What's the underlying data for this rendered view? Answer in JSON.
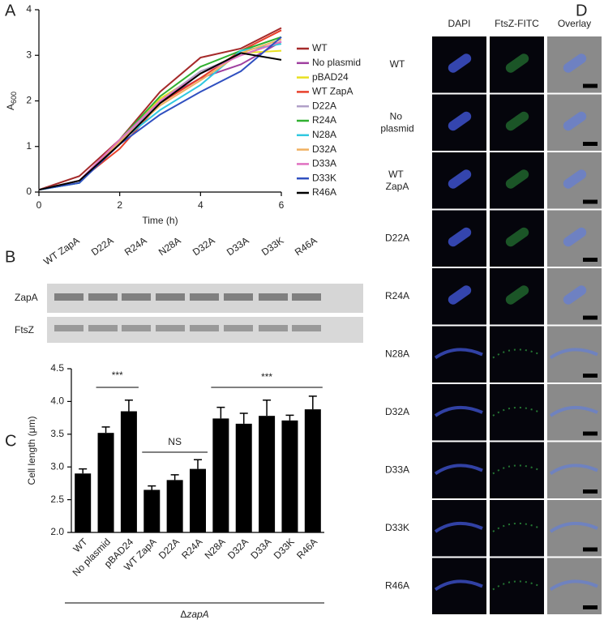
{
  "chart_data": [
    {
      "type": "line",
      "panel_label": "A",
      "xlabel": "Time (h)",
      "ylabel": "A",
      "ylabel_subscript": "600",
      "x": [
        0,
        1,
        2,
        3,
        4,
        5,
        6
      ],
      "xlim": [
        0,
        6
      ],
      "xticks": [
        0,
        2,
        4,
        6
      ],
      "ylim": [
        0,
        4
      ],
      "yticks": [
        0,
        1,
        2,
        3,
        4
      ],
      "series": [
        {
          "name": "WT",
          "color": "#a52a2a",
          "values": [
            0.05,
            0.35,
            1.15,
            2.2,
            2.95,
            3.15,
            3.6
          ]
        },
        {
          "name": "No plasmid",
          "color": "#a040a0",
          "values": [
            0.05,
            0.25,
            1.1,
            2.0,
            2.5,
            2.8,
            3.3
          ]
        },
        {
          "name": "pBAD24",
          "color": "#e8e020",
          "values": [
            0.05,
            0.25,
            1.1,
            2.05,
            2.6,
            3.05,
            3.1
          ]
        },
        {
          "name": "WT ZapA",
          "color": "#e8402a",
          "values": [
            0.05,
            0.25,
            0.95,
            1.95,
            2.5,
            3.1,
            3.55
          ]
        },
        {
          "name": "D22A",
          "color": "#b0a0c8",
          "values": [
            0.05,
            0.25,
            1.1,
            2.0,
            2.65,
            3.0,
            3.3
          ]
        },
        {
          "name": "R24A",
          "color": "#30b030",
          "values": [
            0.05,
            0.2,
            1.15,
            2.1,
            2.75,
            3.1,
            3.4
          ]
        },
        {
          "name": "N28A",
          "color": "#30c8e0",
          "values": [
            0.05,
            0.2,
            1.1,
            1.8,
            2.35,
            3.1,
            3.25
          ]
        },
        {
          "name": "D32A",
          "color": "#f0b060",
          "values": [
            0.05,
            0.25,
            1.1,
            1.9,
            2.45,
            3.05,
            3.35
          ]
        },
        {
          "name": "D33A",
          "color": "#e070c0",
          "values": [
            0.05,
            0.25,
            1.15,
            2.0,
            2.6,
            3.0,
            3.3
          ]
        },
        {
          "name": "D33K",
          "color": "#3050c0",
          "values": [
            0.05,
            0.2,
            1.05,
            1.7,
            2.2,
            2.65,
            3.4
          ]
        },
        {
          "name": "R46A",
          "color": "#000000",
          "values": [
            0.05,
            0.25,
            1.05,
            1.95,
            2.6,
            3.05,
            2.9
          ]
        }
      ]
    },
    {
      "type": "bar",
      "panel_label": "C",
      "ylabel": "Cell length (μm)",
      "xlabel_prefix": "Δ",
      "xlabel": "zapA",
      "color": "#000000",
      "categories": [
        "WT",
        "No plasmid",
        "pBAD24",
        "WT ZapA",
        "D22A",
        "R24A",
        "N28A",
        "D32A",
        "D33A",
        "D33K",
        "R46A"
      ],
      "values": [
        2.9,
        3.52,
        3.85,
        2.65,
        2.8,
        2.97,
        3.74,
        3.66,
        3.78,
        3.71,
        3.88
      ],
      "errors": [
        0.07,
        0.09,
        0.17,
        0.06,
        0.08,
        0.14,
        0.17,
        0.16,
        0.24,
        0.08,
        0.2
      ],
      "ylim": [
        2,
        4.5
      ],
      "yticks": [
        {
          "value": 2,
          "label": "2.0"
        },
        2.5,
        {
          "value": 3,
          "label": "3.0"
        },
        3.5,
        {
          "value": 4,
          "label": "4.0"
        },
        4.5
      ],
      "annotations": [
        "***",
        "NS",
        "***"
      ]
    }
  ],
  "blot": {
    "panel_label": "B",
    "lanes": [
      "WT ZapA",
      "D22A",
      "R24A",
      "N28A",
      "D32A",
      "D33A",
      "D33K",
      "R46A"
    ],
    "rows": [
      "ZapA",
      "FtsZ"
    ]
  },
  "micrographs": {
    "panel_label": "D",
    "columns": [
      "DAPI",
      "FtsZ-FITC",
      "Overlay"
    ],
    "rows": [
      "WT",
      "No plasmid",
      "WT ZapA",
      "D22A",
      "R24A",
      "N28A",
      "D32A",
      "D33A",
      "D33K",
      "R46A"
    ]
  }
}
